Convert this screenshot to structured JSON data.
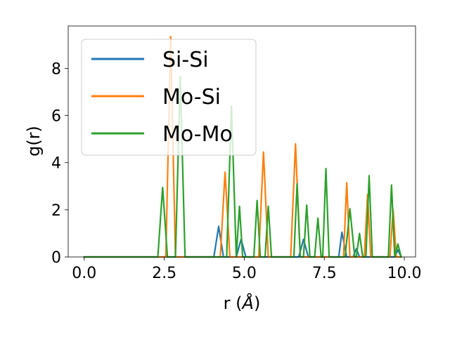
{
  "chart_data": {
    "type": "line",
    "title": "",
    "xlabel": "r (",
    "xlabel_unit": "Å",
    "xlabel_close": ")",
    "ylabel": "g(r)",
    "xlim": [
      -0.5,
      10.35
    ],
    "ylim": [
      0,
      9.8
    ],
    "xticks": [
      0.0,
      2.5,
      5.0,
      7.5,
      10.0
    ],
    "xtick_labels": [
      "0.0",
      "2.5",
      "5.0",
      "7.5",
      "10.0"
    ],
    "yticks": [
      0,
      2,
      4,
      6,
      8
    ],
    "ytick_labels": [
      "0",
      "2",
      "4",
      "6",
      "8"
    ],
    "grid": false,
    "legend_position": "top-left",
    "series": [
      {
        "name": "Si-Si",
        "color": "#1f77b4",
        "x": [
          0.0,
          4.05,
          4.2,
          4.35,
          4.75,
          4.9,
          5.05,
          6.7,
          6.85,
          7.0,
          7.95,
          8.05,
          8.2,
          8.4,
          8.5,
          8.6,
          9.7,
          9.8,
          9.9
        ],
        "y": [
          0,
          0,
          1.3,
          0,
          0,
          0.75,
          0,
          0,
          0.75,
          0,
          0,
          1.05,
          0,
          0,
          0.35,
          0,
          0,
          0.3,
          0
        ]
      },
      {
        "name": "Mo-Si",
        "color": "#ff7f0e",
        "x": [
          0.0,
          2.55,
          2.7,
          2.85,
          4.25,
          4.4,
          4.55,
          5.45,
          5.6,
          5.75,
          6.45,
          6.6,
          6.75,
          8.1,
          8.2,
          8.3,
          8.75,
          8.85,
          8.95,
          9.55,
          9.65,
          9.75,
          9.9
        ],
        "y": [
          0,
          0,
          9.35,
          0,
          0,
          3.6,
          0,
          0,
          4.45,
          0,
          0,
          4.8,
          0,
          0,
          3.15,
          0,
          0,
          2.65,
          0,
          0,
          2.0,
          0,
          0
        ]
      },
      {
        "name": "Mo-Mo",
        "color": "#2ca02c",
        "x": [
          0.0,
          2.3,
          2.45,
          2.6,
          2.85,
          3.0,
          3.15,
          4.45,
          4.6,
          4.75,
          4.85,
          4.95,
          5.05,
          5.3,
          5.4,
          5.5,
          5.65,
          5.75,
          5.85,
          6.55,
          6.65,
          6.75,
          6.85,
          6.95,
          7.05,
          7.2,
          7.3,
          7.4,
          7.45,
          7.55,
          7.65,
          8.15,
          8.3,
          8.45,
          8.5,
          8.6,
          8.7,
          8.8,
          8.9,
          9.0,
          9.1,
          9.5,
          9.6,
          9.7,
          9.8,
          9.9
        ],
        "y": [
          0,
          0,
          2.95,
          0,
          0,
          7.65,
          0,
          0,
          6.4,
          0,
          2.15,
          0,
          0,
          0,
          2.4,
          0,
          0,
          2.15,
          0,
          0,
          3.1,
          0,
          0,
          2.2,
          0,
          0,
          1.65,
          0,
          0,
          3.75,
          0,
          0,
          2.05,
          0,
          0,
          1.0,
          0,
          0,
          3.45,
          0,
          0,
          0,
          3.05,
          0,
          0.55,
          0
        ]
      }
    ]
  }
}
